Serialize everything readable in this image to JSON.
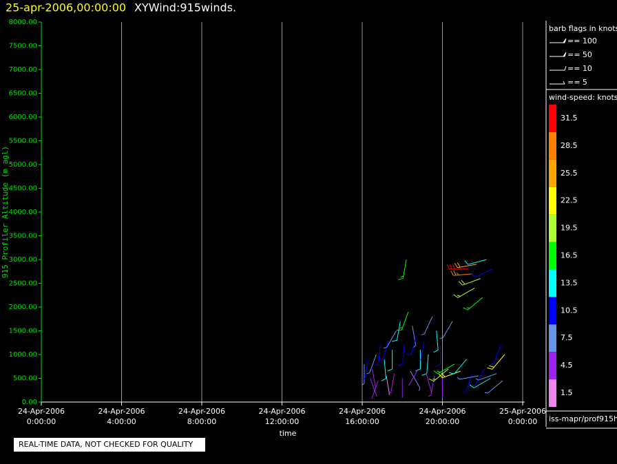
{
  "chart_data": {
    "type": "barbs",
    "title": "25-apr-2006,00:00:00",
    "subtitle": "XYWind:915winds.",
    "x_label": "time",
    "y_label": "915 Profiler Altitude (m agl)",
    "xlim": [
      0,
      24
    ],
    "ylim": [
      0,
      8000
    ],
    "xticks": [
      {
        "value": 0,
        "label": [
          "24-Apr-2006",
          "0:00:00"
        ]
      },
      {
        "value": 4,
        "label": [
          "24-Apr-2006",
          "4:00:00"
        ]
      },
      {
        "value": 8,
        "label": [
          "24-Apr-2006",
          "8:00:00"
        ]
      },
      {
        "value": 12,
        "label": [
          "24-Apr-2006",
          "12:00:00"
        ]
      },
      {
        "value": 16,
        "label": [
          "24-Apr-2006",
          "16:00:00"
        ]
      },
      {
        "value": 20,
        "label": [
          "24-Apr-2006",
          "20:00:00"
        ]
      },
      {
        "value": 24,
        "label": [
          "25-Apr-2006",
          "0:00:00"
        ]
      }
    ],
    "yticks": [
      {
        "value": 0,
        "label": "0.00"
      },
      {
        "value": 500,
        "label": "500.00"
      },
      {
        "value": 1000,
        "label": "1000.00"
      },
      {
        "value": 1500,
        "label": "1500.00"
      },
      {
        "value": 2000,
        "label": "2000.00"
      },
      {
        "value": 2500,
        "label": "2500.00"
      },
      {
        "value": 3000,
        "label": "3000.00"
      },
      {
        "value": 3500,
        "label": "3500.00"
      },
      {
        "value": 4000,
        "label": "4000.00"
      },
      {
        "value": 4500,
        "label": "4500.00"
      },
      {
        "value": 5000,
        "label": "5000.00"
      },
      {
        "value": 5500,
        "label": "5500.00"
      },
      {
        "value": 6000,
        "label": "6000.00"
      },
      {
        "value": 6500,
        "label": "6500.00"
      },
      {
        "value": 7000,
        "label": "7000.00"
      },
      {
        "value": 7500,
        "label": "7500.00"
      },
      {
        "value": 8000,
        "label": "8000.00"
      }
    ],
    "grid": true,
    "barbs": {
      "x": [
        16.1,
        16.3,
        16.5,
        16.7,
        16.9,
        17.1,
        17.3,
        17.5,
        17.7,
        17.9,
        18.1,
        18.3,
        18.5,
        18.7,
        18.9,
        19.1,
        19.3,
        19.5,
        19.7,
        19.9,
        16.4,
        16.8,
        17.2,
        17.6,
        18.0,
        18.4,
        18.8,
        19.2,
        19.6,
        20.0,
        20.3,
        20.6,
        20.9,
        21.2,
        21.5,
        21.8,
        22.1,
        22.4,
        22.7,
        23.0,
        18.2,
        21.3,
        21.5,
        21.7,
        21.9,
        22.2,
        22.5,
        21.6,
        22.0,
        23.1,
        22.9,
        20.5
      ],
      "altitude": [
        800,
        900,
        700,
        1000,
        1200,
        900,
        1300,
        1100,
        1500,
        1700,
        1200,
        1900,
        1600,
        1400,
        1100,
        1300,
        1000,
        1800,
        1500,
        1200,
        500,
        450,
        550,
        600,
        500,
        650,
        700,
        600,
        550,
        500,
        700,
        800,
        650,
        900,
        600,
        550,
        700,
        500,
        600,
        450,
        3000,
        2800,
        2700,
        2900,
        2600,
        3000,
        2800,
        2400,
        2200,
        1000,
        1200,
        1700
      ],
      "speed": [
        8,
        9,
        4,
        6,
        11,
        12,
        9,
        14,
        8,
        13,
        10,
        15,
        7,
        11,
        12,
        9,
        14,
        8,
        13,
        11,
        3,
        4,
        2,
        5,
        3,
        6,
        4,
        3,
        5,
        4,
        19,
        16,
        22,
        13,
        9,
        7,
        10,
        12,
        6,
        8,
        17,
        31,
        28,
        24,
        20,
        14,
        11,
        18,
        15,
        21,
        9,
        8
      ],
      "direction": [
        180,
        190,
        170,
        200,
        185,
        175,
        195,
        180,
        210,
        190,
        185,
        200,
        170,
        195,
        180,
        190,
        185,
        205,
        175,
        180,
        160,
        200,
        170,
        190,
        180,
        150,
        210,
        165,
        190,
        180,
        230,
        240,
        250,
        220,
        200,
        260,
        210,
        240,
        250,
        230,
        190,
        270,
        265,
        260,
        250,
        255,
        245,
        240,
        230,
        220,
        200,
        210
      ]
    },
    "barb_legend": {
      "title": "barb flags in knots",
      "entries": [
        "== 100",
        "== 50",
        "== 10",
        "== 5"
      ]
    },
    "colorbar": {
      "title": "wind-speed: knots",
      "levels": [
        31.5,
        28.5,
        25.5,
        22.5,
        19.5,
        16.5,
        13.5,
        10.5,
        7.5,
        4.5,
        1.5
      ],
      "colors": [
        "#ff0000",
        "#ff7f00",
        "#ffa500",
        "#ffff00",
        "#adff2f",
        "#00ff00",
        "#00ffff",
        "#0000ff",
        "#6495ed",
        "#a020f0",
        "#ee82ee"
      ]
    },
    "source": "iss-mapr/prof915h",
    "notice": "REAL-TIME DATA, NOT CHECKED FOR QUALITY"
  }
}
